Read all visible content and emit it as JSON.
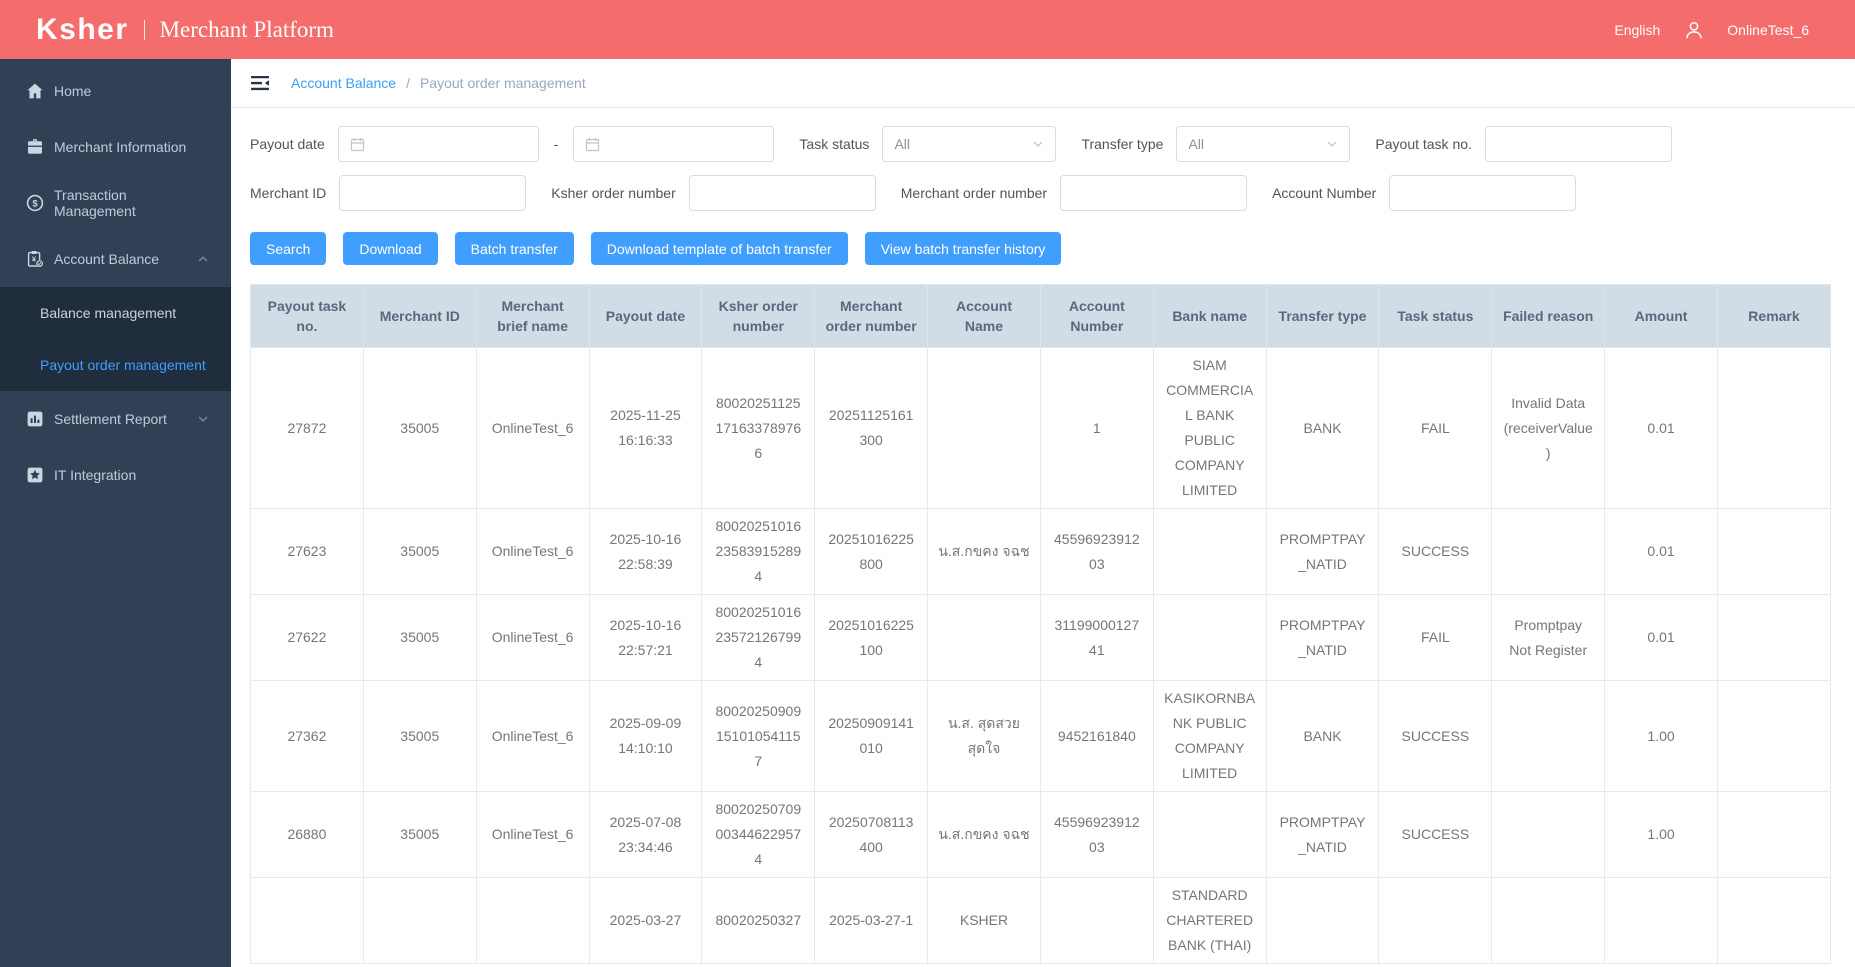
{
  "colors": {
    "header_bg": "#f56c6c",
    "sidebar_bg": "#304156",
    "submenu_bg": "#1f2d3d",
    "accent_blue": "#409eff",
    "table_header_bg": "#d2dce6"
  },
  "header": {
    "brand": "Ksher",
    "brand_subtitle": "Merchant Platform",
    "language": "English",
    "username": "OnlineTest_6"
  },
  "sidebar": {
    "items": [
      {
        "label": "Home",
        "icon": "home-icon"
      },
      {
        "label": "Merchant Information",
        "icon": "briefcase-icon"
      },
      {
        "label": "Transaction Management",
        "icon": "dollar-circle-icon"
      },
      {
        "label": "Account Balance",
        "icon": "clipboard-icon",
        "expanded": true,
        "children": [
          {
            "label": "Balance management",
            "active": false
          },
          {
            "label": "Payout order management",
            "active": true
          }
        ]
      },
      {
        "label": "Settlement Report",
        "icon": "bar-chart-icon",
        "expanded": false
      },
      {
        "label": "IT Integration",
        "icon": "star-icon"
      }
    ]
  },
  "breadcrumb": {
    "separator": "/",
    "items": [
      {
        "label": "Account Balance"
      },
      {
        "label": "Payout order management"
      }
    ]
  },
  "filters": {
    "payout_date": {
      "label": "Payout date",
      "from_value": "",
      "to_value": "",
      "range_separator": "-"
    },
    "task_status": {
      "label": "Task status",
      "value": "All"
    },
    "transfer_type": {
      "label": "Transfer type",
      "value": "All"
    },
    "payout_task_no": {
      "label": "Payout task no.",
      "value": ""
    },
    "merchant_id": {
      "label": "Merchant ID",
      "value": ""
    },
    "ksher_order_number": {
      "label": "Ksher order number",
      "value": ""
    },
    "merchant_order_number": {
      "label": "Merchant order number",
      "value": ""
    },
    "account_number": {
      "label": "Account Number",
      "value": ""
    }
  },
  "actions": {
    "search": "Search",
    "download": "Download",
    "batch_transfer": "Batch transfer",
    "download_template": "Download template of batch transfer",
    "view_history": "View batch transfer history"
  },
  "table": {
    "columns": [
      "Payout task no.",
      "Merchant ID",
      "Merchant brief name",
      "Payout date",
      "Ksher order number",
      "Merchant order number",
      "Account Name",
      "Account Number",
      "Bank name",
      "Transfer type",
      "Task status",
      "Failed reason",
      "Amount",
      "Remark"
    ],
    "rows": [
      {
        "cells": [
          "27872",
          "35005",
          "OnlineTest_6",
          "2025-11-25 16:16:33",
          "80020251125171633789766",
          "20251125161300",
          "",
          "1",
          "SIAM COMMERCIAL BANK PUBLIC COMPANY LIMITED",
          "BANK",
          "FAIL",
          "Invalid Data (receiverValue)",
          "0.01",
          ""
        ]
      },
      {
        "cells": [
          "27623",
          "35005",
          "OnlineTest_6",
          "2025-10-16 22:58:39",
          "80020251016235839152894",
          "20251016225800",
          "น.ส.กขคง จฉช",
          "4559692391203",
          "",
          "PROMPTPAY_NATID",
          "SUCCESS",
          "",
          "0.01",
          ""
        ]
      },
      {
        "cells": [
          "27622",
          "35005",
          "OnlineTest_6",
          "2025-10-16 22:57:21",
          "80020251016235721267994",
          "20251016225100",
          "",
          "3119900012741",
          "",
          "PROMPTPAY_NATID",
          "FAIL",
          "Promptpay Not Register",
          "0.01",
          ""
        ]
      },
      {
        "cells": [
          "27362",
          "35005",
          "OnlineTest_6",
          "2025-09-09 14:10:10",
          "80020250909151010541157",
          "20250909141010",
          "น.ส. สุดสวย สุดใจ",
          "9452161840",
          "KASIKORNBANK PUBLIC COMPANY LIMITED",
          "BANK",
          "SUCCESS",
          "",
          "1.00",
          ""
        ]
      },
      {
        "cells": [
          "26880",
          "35005",
          "OnlineTest_6",
          "2025-07-08 23:34:46",
          "80020250709003446229574",
          "20250708113400",
          "น.ส.กขคง จฉช",
          "4559692391203",
          "",
          "PROMPTPAY_NATID",
          "SUCCESS",
          "",
          "1.00",
          ""
        ]
      },
      {
        "cells": [
          "",
          "",
          "",
          "2025-03-27",
          "80020250327",
          "2025-03-27-1",
          "KSHER",
          "",
          "STANDARD CHARTERED BANK (THAI)",
          "",
          "",
          "",
          "",
          ""
        ]
      }
    ]
  }
}
